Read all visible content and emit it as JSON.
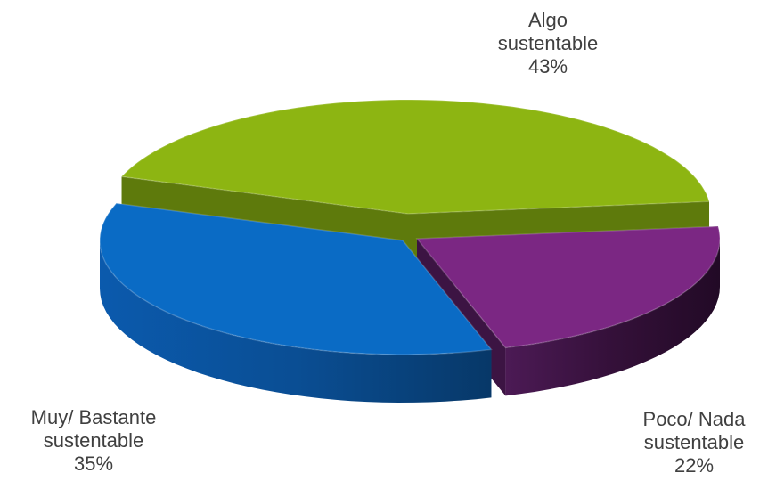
{
  "chart_data": {
    "type": "pie",
    "style": "3d-exploded",
    "categories": [
      "Algo sustentable",
      "Poco/ Nada sustentable",
      "Muy/ Bastante sustentable"
    ],
    "values": [
      43,
      22,
      35
    ],
    "unit": "%",
    "colors": [
      "#8DB512",
      "#7B2783",
      "#0A6BC5"
    ],
    "side_colors": [
      "#5E7A0C",
      "#3C1443",
      "#0A4E94"
    ],
    "labels": [
      {
        "lines": [
          "Algo",
          "sustentable"
        ],
        "value_text": "43%"
      },
      {
        "lines": [
          "Poco/ Nada",
          "sustentable"
        ],
        "value_text": "22%"
      },
      {
        "lines": [
          "Muy/ Bastante",
          "sustentable"
        ],
        "value_text": "35%"
      }
    ],
    "legend": "none"
  }
}
